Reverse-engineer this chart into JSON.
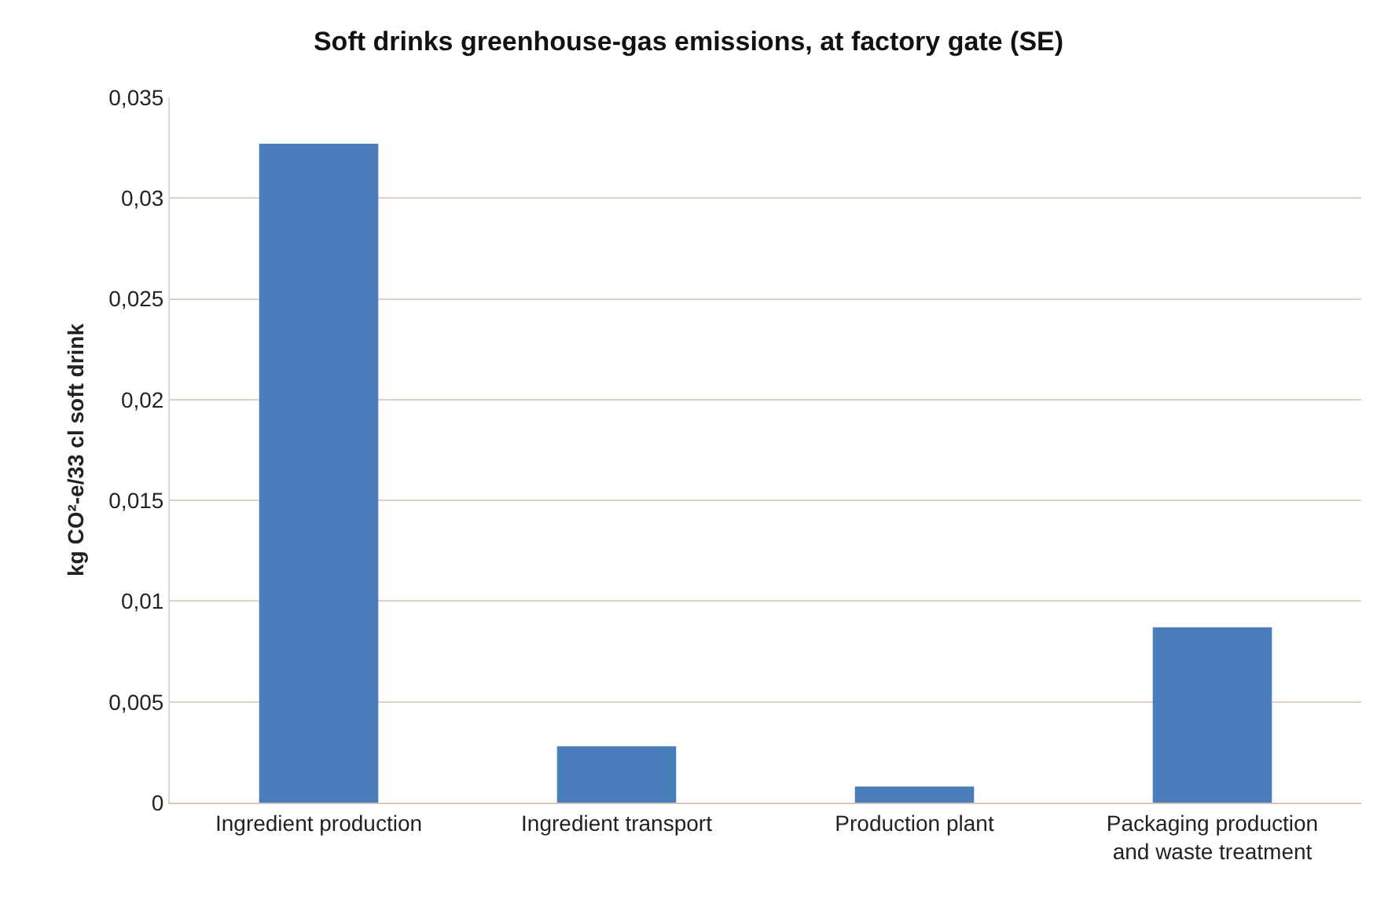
{
  "chart_data": {
    "type": "bar",
    "title": "Soft drinks greenhouse-gas emissions, at factory gate (SE)",
    "ylabel": "kg CO²-e/33 cl soft drink",
    "categories": [
      "Ingredient production",
      "Ingredient transport",
      "Production plant",
      "Packaging production and waste treatment"
    ],
    "values": [
      0.0327,
      0.0028,
      0.0008,
      0.0087
    ],
    "color": "#4a7ebb",
    "ylim": [
      0,
      0.035
    ],
    "yticks": [
      {
        "value": 0,
        "label": "0"
      },
      {
        "value": 0.005,
        "label": "0,005"
      },
      {
        "value": 0.01,
        "label": "0,01"
      },
      {
        "value": 0.015,
        "label": "0,015"
      },
      {
        "value": 0.02,
        "label": "0,02"
      },
      {
        "value": 0.025,
        "label": "0,025"
      },
      {
        "value": 0.03,
        "label": "0,03"
      },
      {
        "value": 0.035,
        "label": "0,035"
      }
    ],
    "grid": "y"
  }
}
